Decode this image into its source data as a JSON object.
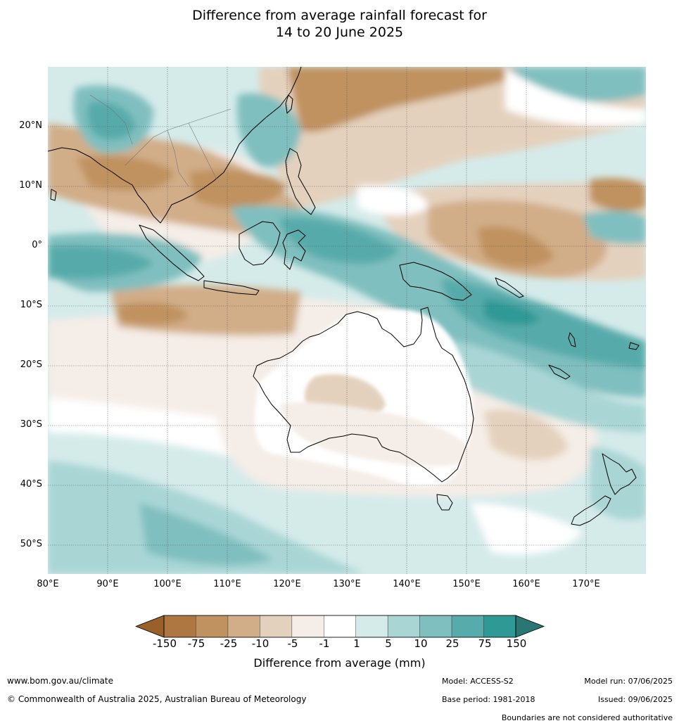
{
  "title": {
    "line1": "Difference from average rainfall forecast for",
    "line2": "14 to 20 June 2025"
  },
  "map": {
    "lat_labels": [
      "20°N",
      "10°N",
      "0°",
      "10°S",
      "20°S",
      "30°S",
      "40°S",
      "50°S"
    ],
    "lon_labels": [
      "80°E",
      "90°E",
      "100°E",
      "110°E",
      "120°E",
      "130°E",
      "140°E",
      "150°E",
      "160°E",
      "170°E"
    ]
  },
  "colorbar": {
    "ticks": [
      "-150",
      "-75",
      "-25",
      "-10",
      "-5",
      "-1",
      "1",
      "5",
      "10",
      "25",
      "75",
      "150"
    ],
    "colors": [
      "#99602a",
      "#ae7741",
      "#c0925f",
      "#d1ad88",
      "#e4d1bd",
      "#f5ede7",
      "#ffffff",
      "#d5ebea",
      "#a9d6d5",
      "#80bfbf",
      "#57abaa",
      "#2f9995",
      "#2a7674"
    ],
    "label": "Difference from average (mm)"
  },
  "footer": {
    "website": "www.bom.gov.au/climate",
    "copyright": "© Commonwealth of Australia 2025, Australian Bureau of Meteorology",
    "model": "Model: ACCESS-S2",
    "base_period": "Base period: 1981-2018",
    "model_run": "Model run: 07/06/2025",
    "issued": "Issued: 09/06/2025",
    "disclaimer": "Boundaries are not considered authoritative"
  }
}
